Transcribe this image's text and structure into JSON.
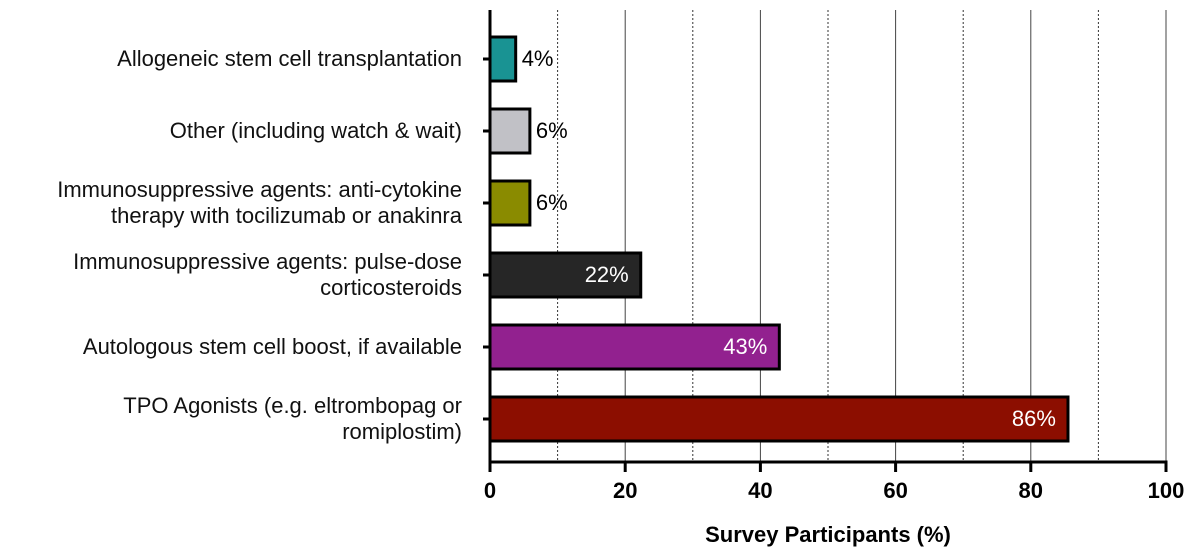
{
  "chart_data": {
    "type": "bar",
    "orientation": "horizontal",
    "xlabel": "Survey Participants (%)",
    "categories": [
      "Allogeneic stem cell transplantation",
      "Other (including watch & wait)",
      "Immunosuppressive agents: anti-cytokine\ntherapy with tocilizumab or anakinra",
      "Immunosuppressive agents: pulse-dose\ncorticosteroids",
      "Autologous stem cell boost, if available",
      "TPO Agonists (e.g. eltrombopag or\nromiplostim)"
    ],
    "values": [
      3.8,
      5.9,
      5.9,
      22.3,
      42.8,
      85.5
    ],
    "value_labels": [
      "4%",
      "6%",
      "6%",
      "22%",
      "43%",
      "86%"
    ],
    "colors": [
      "#199393",
      "#c1c1c6",
      "#8a8b00",
      "#262626",
      "#92218f",
      "#8c0e00"
    ],
    "xlim": [
      0,
      100
    ],
    "xticks": [
      0,
      20,
      40,
      60,
      80,
      100
    ],
    "minor_xticks": [
      10,
      30,
      50,
      70,
      90
    ],
    "grid": true
  }
}
